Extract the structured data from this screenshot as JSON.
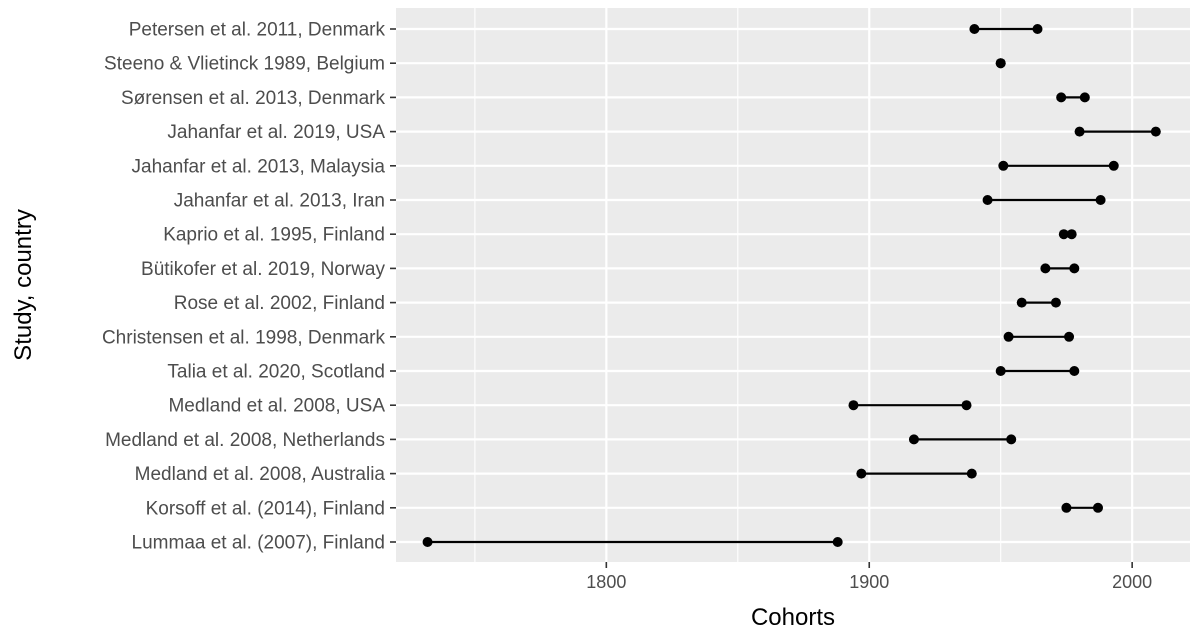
{
  "chart_data": {
    "type": "dumbbell",
    "title": "",
    "xlabel": "Cohorts",
    "ylabel": "Study, country",
    "xlim": [
      1720,
      2022
    ],
    "xticks": [
      1800,
      1900,
      2000
    ],
    "grid": true,
    "legend": "none",
    "colors": {
      "panel": "#ebebeb",
      "grid": "#ffffff",
      "marks": "#000000"
    },
    "studies": [
      {
        "label": "Petersen et al. 2011, Denmark",
        "start": 1940,
        "end": 1964
      },
      {
        "label": "Steeno & Vlietinck 1989, Belgium",
        "start": 1950,
        "end": 1950
      },
      {
        "label": "Sørensen et al. 2013, Denmark",
        "start": 1973,
        "end": 1982
      },
      {
        "label": "Jahanfar et al. 2019, USA",
        "start": 1980,
        "end": 2009
      },
      {
        "label": "Jahanfar et al. 2013, Malaysia",
        "start": 1951,
        "end": 1993
      },
      {
        "label": "Jahanfar et al. 2013, Iran",
        "start": 1945,
        "end": 1988
      },
      {
        "label": "Kaprio et al. 1995, Finland",
        "start": 1974,
        "end": 1977
      },
      {
        "label": "Bütikofer et al. 2019, Norway",
        "start": 1967,
        "end": 1978
      },
      {
        "label": "Rose et al. 2002, Finland",
        "start": 1958,
        "end": 1971
      },
      {
        "label": "Christensen et al. 1998, Denmark",
        "start": 1953,
        "end": 1976
      },
      {
        "label": "Talia et al. 2020, Scotland",
        "start": 1950,
        "end": 1978
      },
      {
        "label": "Medland et al. 2008, USA",
        "start": 1894,
        "end": 1937
      },
      {
        "label": "Medland et al. 2008, Netherlands",
        "start": 1917,
        "end": 1954
      },
      {
        "label": "Medland et al. 2008, Australia",
        "start": 1897,
        "end": 1939
      },
      {
        "label": "Korsoff et al. (2014), Finland",
        "start": 1975,
        "end": 1987
      },
      {
        "label": "Lummaa et al. (2007), Finland",
        "start": 1732,
        "end": 1888
      }
    ]
  }
}
